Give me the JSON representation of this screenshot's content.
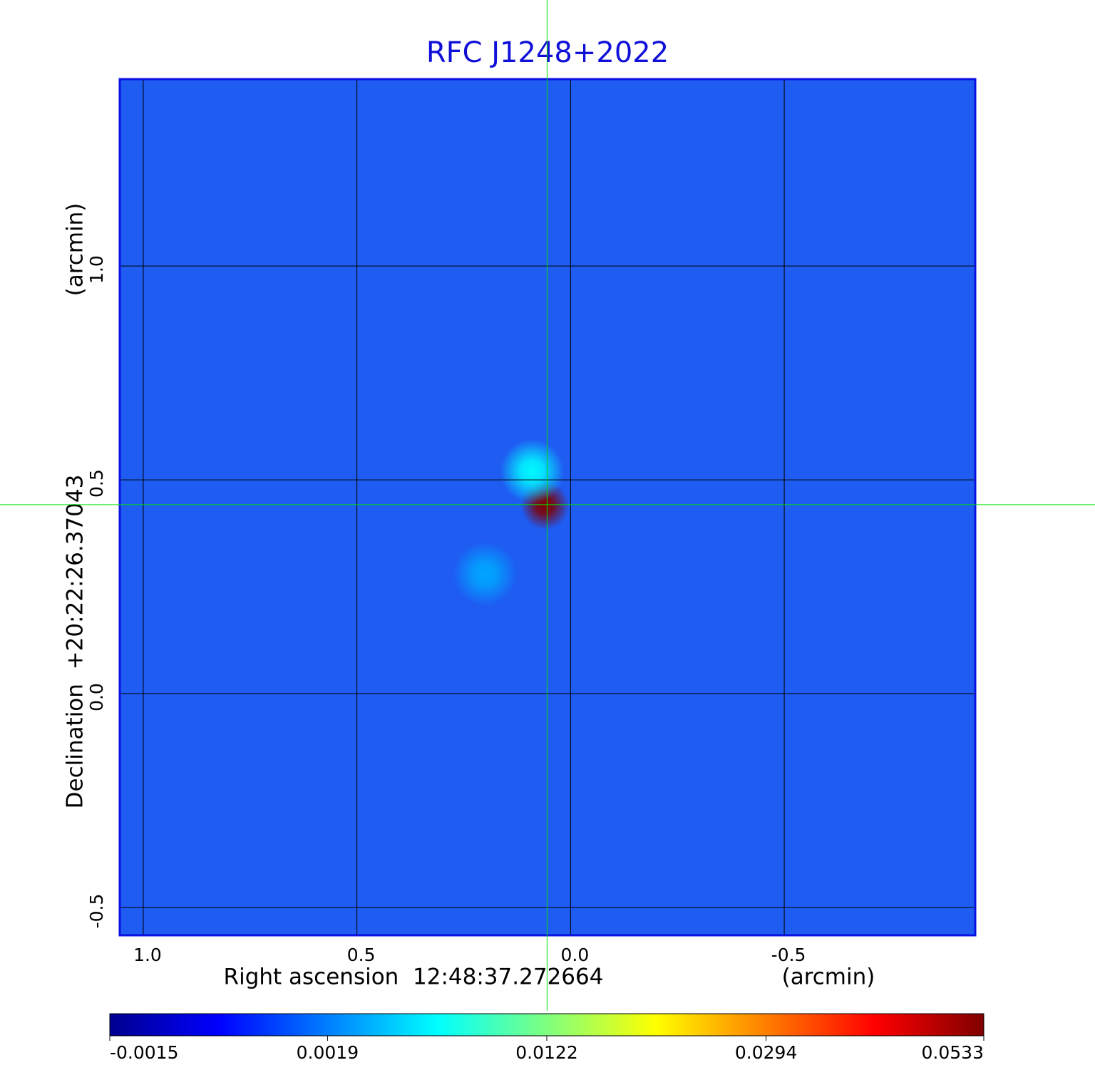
{
  "chart_data": {
    "type": "heatmap",
    "title": "RFC J1248+2022",
    "x_label": "Right ascension  12:48:37.272664",
    "x_unit": "(arcmin)",
    "y_label": "Declination  +20:22:26.37043",
    "y_unit": "(arcmin)",
    "xlim": [
      1.055,
      -0.947
    ],
    "ylim": [
      -0.565,
      1.437
    ],
    "xticks": [
      {
        "value": 1,
        "label": "1.0"
      },
      0.5,
      {
        "value": 0,
        "label": "0.0"
      },
      -0.5
    ],
    "yticks": [
      {
        "value": -0.5,
        "label": "-0.5"
      },
      {
        "value": 0,
        "label": "0.0"
      },
      0.5,
      {
        "value": 1,
        "label": "1.0"
      }
    ],
    "grid": true,
    "crosshair": {
      "x": 0.055,
      "y": 0.442,
      "color": "#00e000"
    },
    "sources": [
      {
        "x": 0.06,
        "y": 0.44,
        "value": 0.0533
      },
      {
        "x": 0.09,
        "y": 0.52,
        "value": 0.006
      },
      {
        "x": 0.2,
        "y": 0.28,
        "value": 0.003
      }
    ],
    "colorbar": {
      "lim": [
        -0.0015,
        0.0533
      ],
      "scale": "sqrt",
      "colormap": "jet",
      "ticks": [
        -0.0015,
        0.0019,
        0.0122,
        0.0294,
        0.0533
      ]
    }
  }
}
